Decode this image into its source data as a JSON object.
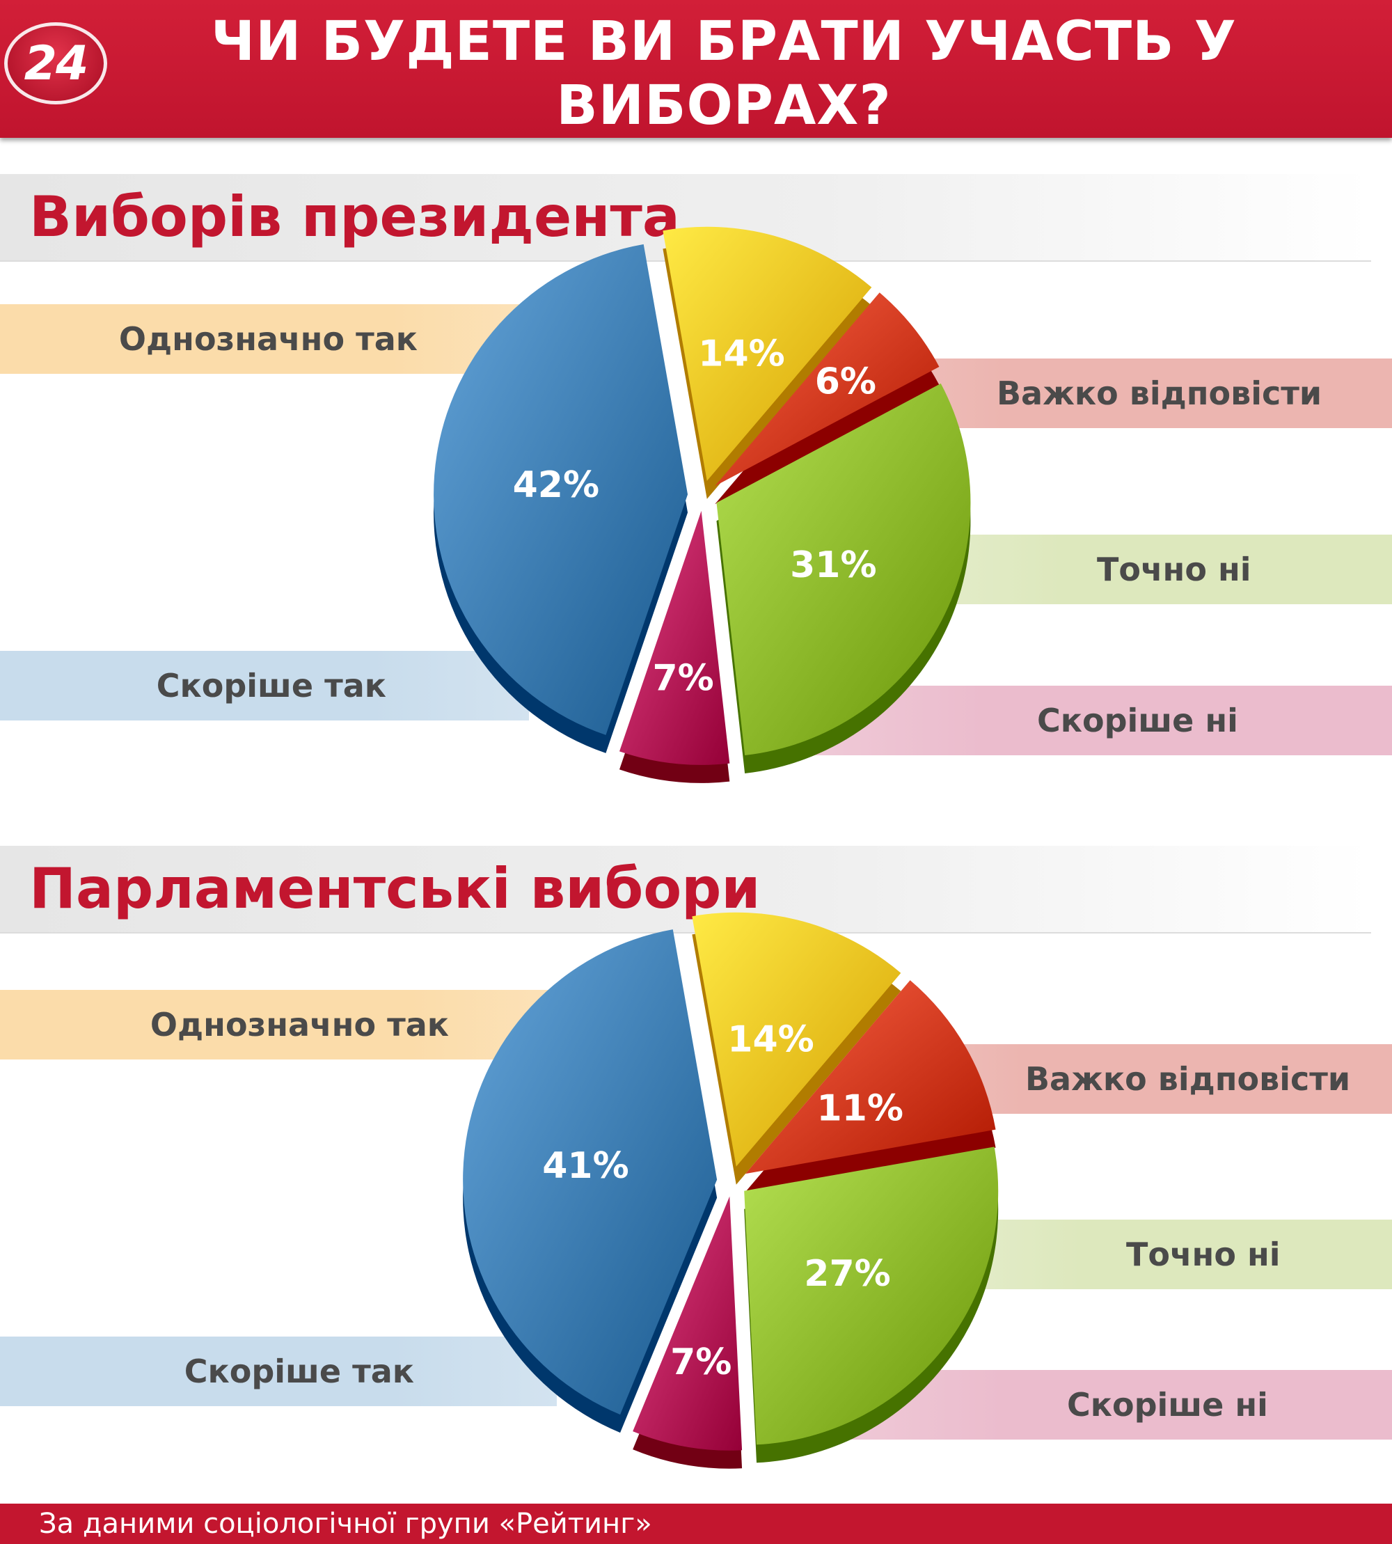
{
  "header": {
    "logo": "24",
    "title_line1": "ЧИ БУДЕТЕ ВИ БРАТИ УЧАСТЬ У",
    "title_line2": "ВИБОРАХ?"
  },
  "footer": {
    "source": "За даними соціологічної групи «Рейтинг»"
  },
  "chart_data": [
    {
      "type": "pie",
      "title": "Виборів президента",
      "slices": [
        {
          "label": "Однозначно так",
          "value": 14,
          "display": "14%",
          "color": "#f7c21d"
        },
        {
          "label": "Важко відповісти",
          "value": 6,
          "display": "6%",
          "color": "#d23a1c"
        },
        {
          "label": "Точно ні",
          "value": 31,
          "display": "31%",
          "color": "#8cb82a"
        },
        {
          "label": "Скоріше ні",
          "value": 7,
          "display": "7%",
          "color": "#b8185a"
        },
        {
          "label": "Скоріше так",
          "value": 42,
          "display": "42%",
          "color": "#3d7db2"
        }
      ]
    },
    {
      "type": "pie",
      "title": "Парламентські вибори",
      "slices": [
        {
          "label": "Однозначно так",
          "value": 14,
          "display": "14%",
          "color": "#f7c21d"
        },
        {
          "label": "Важко відповісти",
          "value": 11,
          "display": "11%",
          "color": "#d23a1c"
        },
        {
          "label": "Точно ні",
          "value": 27,
          "display": "27%",
          "color": "#8cb82a"
        },
        {
          "label": "Скоріше ні",
          "value": 7,
          "display": "7%",
          "color": "#b8185a"
        },
        {
          "label": "Скоріше так",
          "value": 41,
          "display": "41%",
          "color": "#3d7db2"
        }
      ]
    }
  ],
  "band_colors": {
    "Однозначно так": "#fbdcaa",
    "Важко відповісти": "#ecb5b0",
    "Точно ні": "#dde8bd",
    "Скоріше ні": "#ebbccd",
    "Скоріше так": "#c8dcec"
  }
}
